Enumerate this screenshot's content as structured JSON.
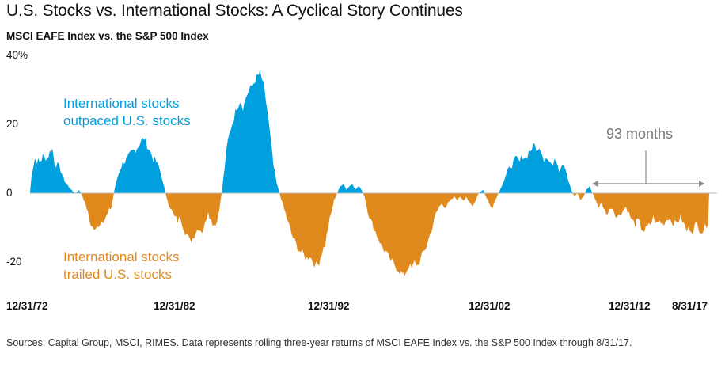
{
  "title": "U.S. Stocks vs. International Stocks: A Cyclical Story Continues",
  "subtitle": "MSCI EAFE Index vs. the S&P 500 Index",
  "source": "Sources: Capital Group, MSCI, RIMES. Data represents rolling three-year returns of MSCI EAFE Index vs. the S&P 500 Index through 8/31/17.",
  "annotations": {
    "outpaced_line1": "International stocks",
    "outpaced_line2": "outpaced U.S. stocks",
    "trailed_line1": "International stocks",
    "trailed_line2": "trailed U.S. stocks",
    "span_label": "93 months"
  },
  "colors": {
    "positive": "#00a0df",
    "negative": "#e08a1e",
    "baseline": "#bbbbbb",
    "bracket": "#8a8a8a"
  },
  "chart_data": {
    "type": "area",
    "ylim": [
      -25,
      40
    ],
    "y_ticks": [
      {
        "value": 40,
        "label": "40%"
      },
      {
        "value": 20,
        "label": "20"
      },
      {
        "value": 0,
        "label": "0"
      },
      {
        "value": -20,
        "label": "-20"
      }
    ],
    "x_ticks": [
      {
        "value": 1972.99,
        "label": "12/31/72"
      },
      {
        "value": 1982.99,
        "label": "12/31/82"
      },
      {
        "value": 1992.99,
        "label": "12/31/92"
      },
      {
        "value": 2002.99,
        "label": "12/31/02"
      },
      {
        "value": 2012.99,
        "label": "12/31/12"
      },
      {
        "value": 2017.67,
        "label": "8/31/17"
      }
    ],
    "xlim": [
      1972.99,
      2017.67
    ],
    "series": [
      {
        "values": [
          [
            1972.99,
            0
          ],
          [
            1973.1,
            6
          ],
          [
            1973.3,
            10
          ],
          [
            1973.6,
            9
          ],
          [
            1973.9,
            11
          ],
          [
            1974.1,
            10
          ],
          [
            1974.3,
            12
          ],
          [
            1974.45,
            13
          ],
          [
            1974.6,
            9
          ],
          [
            1974.8,
            8
          ],
          [
            1975.0,
            7
          ],
          [
            1975.2,
            4
          ],
          [
            1975.5,
            2
          ],
          [
            1975.8,
            0.5
          ],
          [
            1976.0,
            0
          ],
          [
            1976.2,
            1
          ],
          [
            1976.45,
            -1
          ],
          [
            1976.7,
            -4
          ],
          [
            1976.9,
            -8
          ],
          [
            1977.1,
            -10
          ],
          [
            1977.3,
            -11
          ],
          [
            1977.5,
            -9
          ],
          [
            1977.7,
            -8
          ],
          [
            1978.0,
            -7
          ],
          [
            1978.2,
            -5
          ],
          [
            1978.35,
            -4
          ],
          [
            1978.5,
            0
          ],
          [
            1978.7,
            4
          ],
          [
            1978.9,
            7
          ],
          [
            1979.1,
            9
          ],
          [
            1979.4,
            10
          ],
          [
            1979.7,
            12
          ],
          [
            1980.0,
            13
          ],
          [
            1980.3,
            15
          ],
          [
            1980.5,
            16
          ],
          [
            1980.7,
            14
          ],
          [
            1980.9,
            12
          ],
          [
            1981.1,
            10
          ],
          [
            1981.3,
            9
          ],
          [
            1981.5,
            7
          ],
          [
            1981.7,
            4
          ],
          [
            1981.9,
            0
          ],
          [
            1982.1,
            -3
          ],
          [
            1982.3,
            -5
          ],
          [
            1982.5,
            -7
          ],
          [
            1982.7,
            -8
          ],
          [
            1982.9,
            -7
          ],
          [
            1983.1,
            -10
          ],
          [
            1983.3,
            -12
          ],
          [
            1983.5,
            -14
          ],
          [
            1983.7,
            -13
          ],
          [
            1983.9,
            -11
          ],
          [
            1984.1,
            -10
          ],
          [
            1984.3,
            -11
          ],
          [
            1984.5,
            -9
          ],
          [
            1984.7,
            -5
          ],
          [
            1984.9,
            -8
          ],
          [
            1985.1,
            -9
          ],
          [
            1985.3,
            -8
          ],
          [
            1985.45,
            -4
          ],
          [
            1985.6,
            0
          ],
          [
            1985.8,
            8
          ],
          [
            1986.0,
            15
          ],
          [
            1986.2,
            19
          ],
          [
            1986.4,
            22
          ],
          [
            1986.6,
            25
          ],
          [
            1986.8,
            27
          ],
          [
            1987.0,
            25
          ],
          [
            1987.2,
            28
          ],
          [
            1987.4,
            30
          ],
          [
            1987.6,
            31
          ],
          [
            1987.8,
            33
          ],
          [
            1988.0,
            34
          ],
          [
            1988.1,
            35
          ],
          [
            1988.25,
            33
          ],
          [
            1988.4,
            30
          ],
          [
            1988.6,
            24
          ],
          [
            1988.8,
            16
          ],
          [
            1989.0,
            8
          ],
          [
            1989.2,
            3
          ],
          [
            1989.4,
            0
          ],
          [
            1989.6,
            -3
          ],
          [
            1989.8,
            -6
          ],
          [
            1990.0,
            -9
          ],
          [
            1990.2,
            -12
          ],
          [
            1990.4,
            -14
          ],
          [
            1990.6,
            -16
          ],
          [
            1990.8,
            -17
          ],
          [
            1991.0,
            -18
          ],
          [
            1991.2,
            -19
          ],
          [
            1991.4,
            -18
          ],
          [
            1991.6,
            -20
          ],
          [
            1991.8,
            -21
          ],
          [
            1992.0,
            -20
          ],
          [
            1992.2,
            -17
          ],
          [
            1992.4,
            -15
          ],
          [
            1992.6,
            -10
          ],
          [
            1992.8,
            -6
          ],
          [
            1992.99,
            -2
          ],
          [
            1993.2,
            0
          ],
          [
            1993.4,
            2
          ],
          [
            1993.6,
            3
          ],
          [
            1993.8,
            1
          ],
          [
            1994.0,
            2
          ],
          [
            1994.2,
            3
          ],
          [
            1994.4,
            1
          ],
          [
            1994.6,
            2
          ],
          [
            1994.8,
            1
          ],
          [
            1995.0,
            -1
          ],
          [
            1995.2,
            -5
          ],
          [
            1995.4,
            -8
          ],
          [
            1995.6,
            -10
          ],
          [
            1995.8,
            -12
          ],
          [
            1996.0,
            -14
          ],
          [
            1996.2,
            -16
          ],
          [
            1996.4,
            -17
          ],
          [
            1996.6,
            -19
          ],
          [
            1996.8,
            -20
          ],
          [
            1997.0,
            -21
          ],
          [
            1997.2,
            -22
          ],
          [
            1997.4,
            -23
          ],
          [
            1997.55,
            -24
          ],
          [
            1997.7,
            -23
          ],
          [
            1997.9,
            -21
          ],
          [
            1998.1,
            -22
          ],
          [
            1998.3,
            -20
          ],
          [
            1998.5,
            -21
          ],
          [
            1998.7,
            -19
          ],
          [
            1998.9,
            -17
          ],
          [
            1999.1,
            -15
          ],
          [
            1999.3,
            -12
          ],
          [
            1999.5,
            -9
          ],
          [
            1999.7,
            -6
          ],
          [
            1999.9,
            -4
          ],
          [
            2000.1,
            -3
          ],
          [
            2000.3,
            -4
          ],
          [
            2000.5,
            -3
          ],
          [
            2000.7,
            -2
          ],
          [
            2000.9,
            -1
          ],
          [
            2001.1,
            -2
          ],
          [
            2001.3,
            -1
          ],
          [
            2001.5,
            -2
          ],
          [
            2001.7,
            -1
          ],
          [
            2001.9,
            -3
          ],
          [
            2002.1,
            -4
          ],
          [
            2002.3,
            -2
          ],
          [
            2002.5,
            0
          ],
          [
            2002.8,
            1
          ],
          [
            2002.99,
            -1
          ],
          [
            2003.2,
            -3
          ],
          [
            2003.4,
            -4
          ],
          [
            2003.6,
            -2
          ],
          [
            2003.8,
            0
          ],
          [
            2004.0,
            2
          ],
          [
            2004.2,
            4
          ],
          [
            2004.4,
            6
          ],
          [
            2004.6,
            8
          ],
          [
            2004.8,
            9
          ],
          [
            2005.0,
            10
          ],
          [
            2005.2,
            9
          ],
          [
            2005.4,
            11
          ],
          [
            2005.6,
            10
          ],
          [
            2005.8,
            12
          ],
          [
            2006.0,
            13
          ],
          [
            2006.2,
            14
          ],
          [
            2006.4,
            12
          ],
          [
            2006.6,
            13
          ],
          [
            2006.8,
            10
          ],
          [
            2007.0,
            11
          ],
          [
            2007.2,
            9
          ],
          [
            2007.4,
            8
          ],
          [
            2007.6,
            10
          ],
          [
            2007.8,
            7
          ],
          [
            2008.0,
            9
          ],
          [
            2008.2,
            8
          ],
          [
            2008.4,
            4
          ],
          [
            2008.6,
            1
          ],
          [
            2008.8,
            -1
          ],
          [
            2009.0,
            0
          ],
          [
            2009.2,
            -2
          ],
          [
            2009.4,
            -1
          ],
          [
            2009.6,
            1
          ],
          [
            2009.8,
            2
          ],
          [
            2009.99,
            0
          ],
          [
            2010.2,
            -2
          ],
          [
            2010.4,
            -4
          ],
          [
            2010.6,
            -3
          ],
          [
            2010.8,
            -5
          ],
          [
            2011.0,
            -6
          ],
          [
            2011.2,
            -4
          ],
          [
            2011.4,
            -5
          ],
          [
            2011.6,
            -7
          ],
          [
            2011.8,
            -6
          ],
          [
            2012.0,
            -5
          ],
          [
            2012.2,
            -4
          ],
          [
            2012.4,
            -6
          ],
          [
            2012.6,
            -8
          ],
          [
            2012.8,
            -9
          ],
          [
            2013.0,
            -8
          ],
          [
            2013.2,
            -10
          ],
          [
            2013.4,
            -11
          ],
          [
            2013.6,
            -10
          ],
          [
            2013.8,
            -9
          ],
          [
            2014.0,
            -7
          ],
          [
            2014.2,
            -9
          ],
          [
            2014.4,
            -8
          ],
          [
            2014.6,
            -9
          ],
          [
            2014.8,
            -8
          ],
          [
            2015.0,
            -7
          ],
          [
            2015.2,
            -8
          ],
          [
            2015.4,
            -9
          ],
          [
            2015.6,
            -8
          ],
          [
            2015.8,
            -7
          ],
          [
            2016.0,
            -9
          ],
          [
            2016.2,
            -11
          ],
          [
            2016.4,
            -10
          ],
          [
            2016.6,
            -11
          ],
          [
            2016.8,
            -9
          ],
          [
            2017.0,
            -10
          ],
          [
            2017.2,
            -11
          ],
          [
            2017.4,
            -10
          ],
          [
            2017.6,
            -8
          ],
          [
            2017.67,
            0
          ]
        ]
      }
    ],
    "bracket": {
      "from": 2009.99,
      "to": 2017.67
    }
  }
}
